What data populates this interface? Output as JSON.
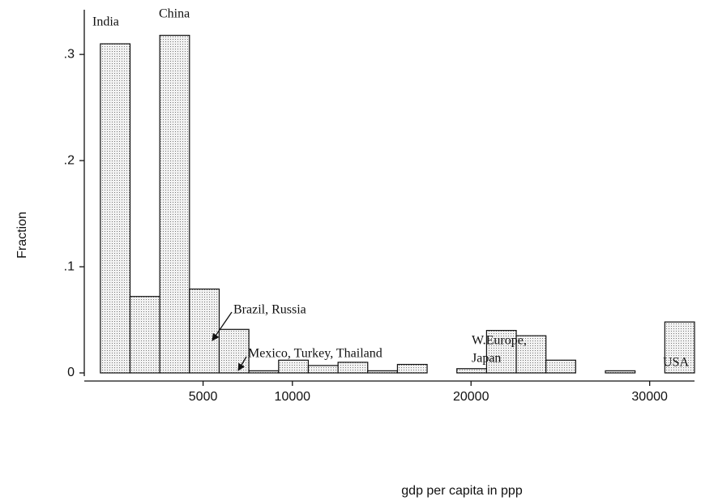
{
  "chart_data": {
    "type": "histogram",
    "x_label": "gdp per capita in ppp",
    "y_label": "Fraction",
    "bins": [
      -750,
      913,
      2576,
      4239,
      5902,
      7565,
      9228,
      10891,
      12554,
      14217,
      15880,
      17543,
      19206,
      20869,
      22532,
      24195,
      25858,
      27521,
      29184,
      30847,
      32510
    ],
    "counts": [
      0.31,
      0.072,
      0.318,
      0.079,
      0.041,
      0.002,
      0.012,
      0.007,
      0.01,
      0.002,
      0.008,
      0,
      0.004,
      0.04,
      0.035,
      0.012,
      0,
      0.002,
      0,
      0.048
    ],
    "color": "#d9d9d9",
    "xlim": [
      -1650,
      32510
    ],
    "xticks": [
      5000,
      10000,
      20000,
      30000
    ],
    "ylim": [
      0,
      0.336
    ],
    "yticks": [
      0,
      {
        "value": 0.1,
        "label": ".1"
      },
      {
        "value": 0.2,
        "label": ".2"
      },
      {
        "value": 0.3,
        "label": ".3"
      }
    ],
    "annotations": [
      {
        "lines": [
          "India"
        ]
      },
      {
        "lines": [
          "China"
        ]
      },
      {
        "lines": [
          "Brazil, Russia"
        ]
      },
      {
        "lines": [
          "Mexico, Turkey, Thailand"
        ]
      },
      {
        "lines": [
          "W.Europe,",
          "Japan"
        ]
      },
      {
        "lines": [
          "USA"
        ]
      }
    ]
  }
}
